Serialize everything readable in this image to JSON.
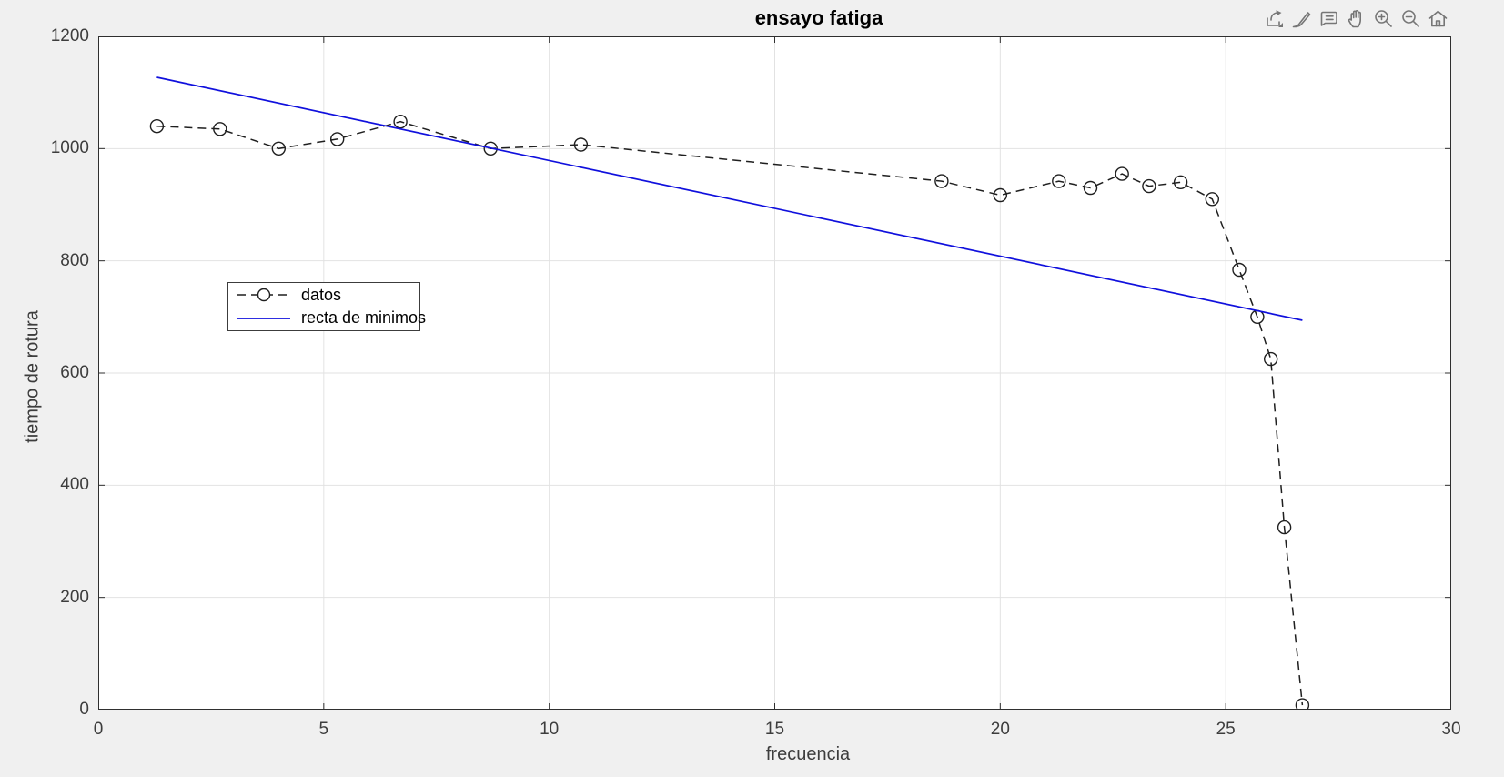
{
  "window": {
    "background_color": "#f0f0f0"
  },
  "toolbar": {
    "icons": [
      "export-icon",
      "brush-icon",
      "data-tips-icon",
      "pan-icon",
      "zoom-in-icon",
      "zoom-out-icon",
      "restore-view-home-icon"
    ]
  },
  "chart_data": {
    "type": "line",
    "title": "ensayo fatiga",
    "xlabel": "frecuencia",
    "ylabel": "tiempo de rotura",
    "xlim": [
      0,
      30
    ],
    "ylim": [
      0,
      1200
    ],
    "xticks": [
      0,
      5,
      10,
      15,
      20,
      25,
      30
    ],
    "yticks": [
      0,
      200,
      400,
      600,
      800,
      1000,
      1200
    ],
    "grid": true,
    "legend": {
      "position": "inside-upper-left",
      "entries": [
        "datos",
        "recta de minimos"
      ]
    },
    "colors": {
      "grid": "#e2e2e2",
      "axis": "#2f2f2f",
      "plot_bg": "#ffffff",
      "figure_bg": "#f0f0f0",
      "icon": "#767676"
    },
    "series": [
      {
        "name": "datos",
        "style": "dashed",
        "marker": "circle",
        "color": "#1f1f1f",
        "line_width": 1.5,
        "x": [
          1.3,
          2.7,
          4.0,
          5.3,
          6.7,
          8.7,
          10.7,
          18.7,
          20.0,
          21.3,
          22.0,
          22.7,
          23.3,
          24.0,
          24.7,
          25.3,
          25.7,
          26.0,
          26.3,
          26.7
        ],
        "y": [
          1040,
          1035,
          1000,
          1017,
          1048,
          1000,
          1007,
          942,
          917,
          942,
          930,
          955,
          933,
          940,
          910,
          784,
          700,
          625,
          325,
          8
        ]
      },
      {
        "name": "recta de minimos",
        "style": "solid",
        "marker": "none",
        "color": "#1010dd",
        "line_width": 1.7,
        "x": [
          1.3,
          26.7
        ],
        "y": [
          1127,
          694
        ]
      }
    ]
  }
}
